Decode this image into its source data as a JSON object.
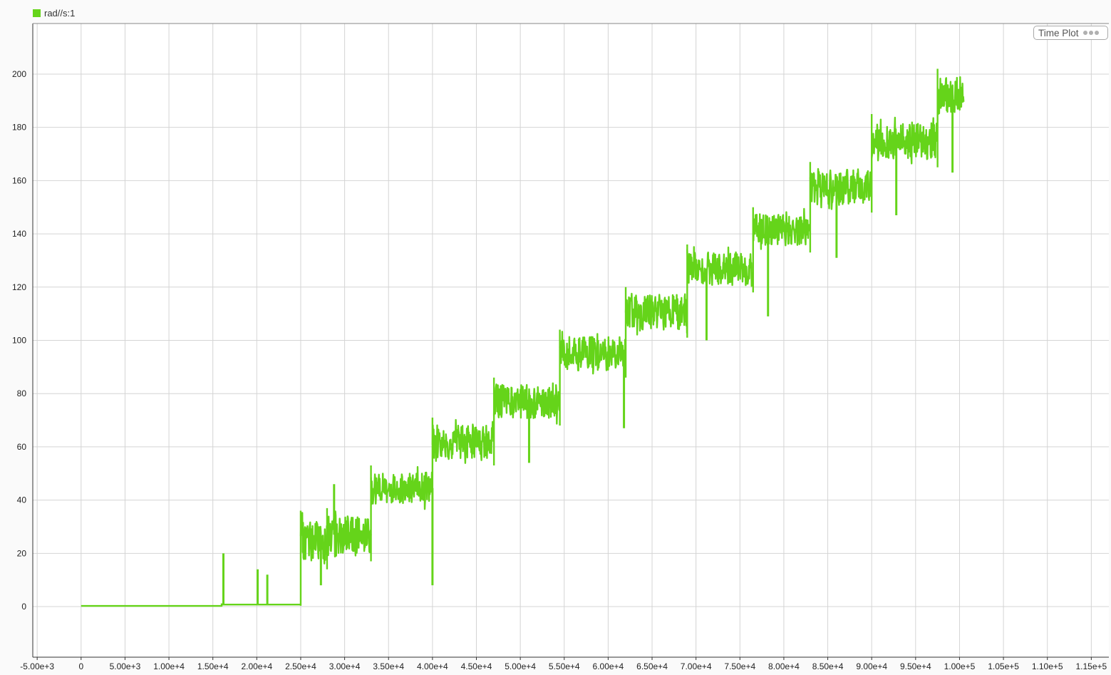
{
  "legend": {
    "label": "rad//s:1",
    "swatch_icon": "legend-swatch-icon"
  },
  "plot_badge": {
    "label": "Time Plot",
    "menu_icon": "more-dots-icon"
  },
  "colors": {
    "signal": "#65d41a",
    "grid": "#d4d4d4",
    "axis": "#333333",
    "background": "#ffffff"
  },
  "chart_data": {
    "type": "line",
    "title": "",
    "xlabel": "",
    "ylabel": "",
    "xlim": [
      -5500,
      117000
    ],
    "ylim": [
      -19,
      219
    ],
    "grid": true,
    "legend_position": "top-left",
    "x_tick_labels": [
      "-5.00e+3",
      "0",
      "5.00e+3",
      "1.00e+4",
      "1.50e+4",
      "2.00e+4",
      "2.50e+4",
      "3.00e+4",
      "3.50e+4",
      "4.00e+4",
      "4.50e+4",
      "5.00e+4",
      "5.50e+4",
      "6.00e+4",
      "6.50e+4",
      "7.00e+4",
      "7.50e+4",
      "8.00e+4",
      "8.50e+4",
      "9.00e+4",
      "9.50e+4",
      "1.00e+5",
      "1.05e+5",
      "1.10e+5",
      "1.15e+5"
    ],
    "x_tick_values": [
      -5000,
      0,
      5000,
      10000,
      15000,
      20000,
      25000,
      30000,
      35000,
      40000,
      45000,
      50000,
      55000,
      60000,
      65000,
      70000,
      75000,
      80000,
      85000,
      90000,
      95000,
      100000,
      105000,
      110000,
      115000
    ],
    "y_tick_labels": [
      "0",
      "20",
      "40",
      "60",
      "80",
      "100",
      "120",
      "140",
      "160",
      "180",
      "200"
    ],
    "y_tick_values": [
      0,
      20,
      40,
      60,
      80,
      100,
      120,
      140,
      160,
      180,
      200
    ],
    "series": [
      {
        "name": "rad//s:1",
        "segments": [
          {
            "x_start": 0,
            "x_end": 16000,
            "low": 0,
            "high": 0.5
          },
          {
            "x_start": 16000,
            "x_end": 25000,
            "low": 0.3,
            "high": 1.2
          },
          {
            "x_start": 25000,
            "x_end": 28000,
            "low": 14,
            "high": 36
          },
          {
            "x_start": 28000,
            "x_end": 33000,
            "low": 17,
            "high": 37
          },
          {
            "x_start": 33000,
            "x_end": 40000,
            "low": 36,
            "high": 53
          },
          {
            "x_start": 40000,
            "x_end": 47000,
            "low": 53,
            "high": 71
          },
          {
            "x_start": 47000,
            "x_end": 54500,
            "low": 68,
            "high": 86
          },
          {
            "x_start": 54500,
            "x_end": 62000,
            "low": 86,
            "high": 104
          },
          {
            "x_start": 62000,
            "x_end": 69000,
            "low": 101,
            "high": 120
          },
          {
            "x_start": 69000,
            "x_end": 76500,
            "low": 118,
            "high": 136
          },
          {
            "x_start": 76500,
            "x_end": 83000,
            "low": 133,
            "high": 150
          },
          {
            "x_start": 83000,
            "x_end": 90000,
            "low": 148,
            "high": 167
          },
          {
            "x_start": 90000,
            "x_end": 97500,
            "low": 165,
            "high": 185
          },
          {
            "x_start": 97500,
            "x_end": 100500,
            "low": 182,
            "high": 202
          }
        ],
        "spikes": [
          {
            "x": 16200,
            "value": 20
          },
          {
            "x": 20100,
            "value": 14
          },
          {
            "x": 21200,
            "value": 12
          },
          {
            "x": 27300,
            "value": 8
          },
          {
            "x": 28800,
            "value": 46
          },
          {
            "x": 40000,
            "value": 8
          },
          {
            "x": 51000,
            "value": 54
          },
          {
            "x": 61800,
            "value": 67
          },
          {
            "x": 71200,
            "value": 100
          },
          {
            "x": 78200,
            "value": 109
          },
          {
            "x": 86000,
            "value": 131
          },
          {
            "x": 92800,
            "value": 147
          },
          {
            "x": 99200,
            "value": 163
          }
        ]
      }
    ]
  }
}
